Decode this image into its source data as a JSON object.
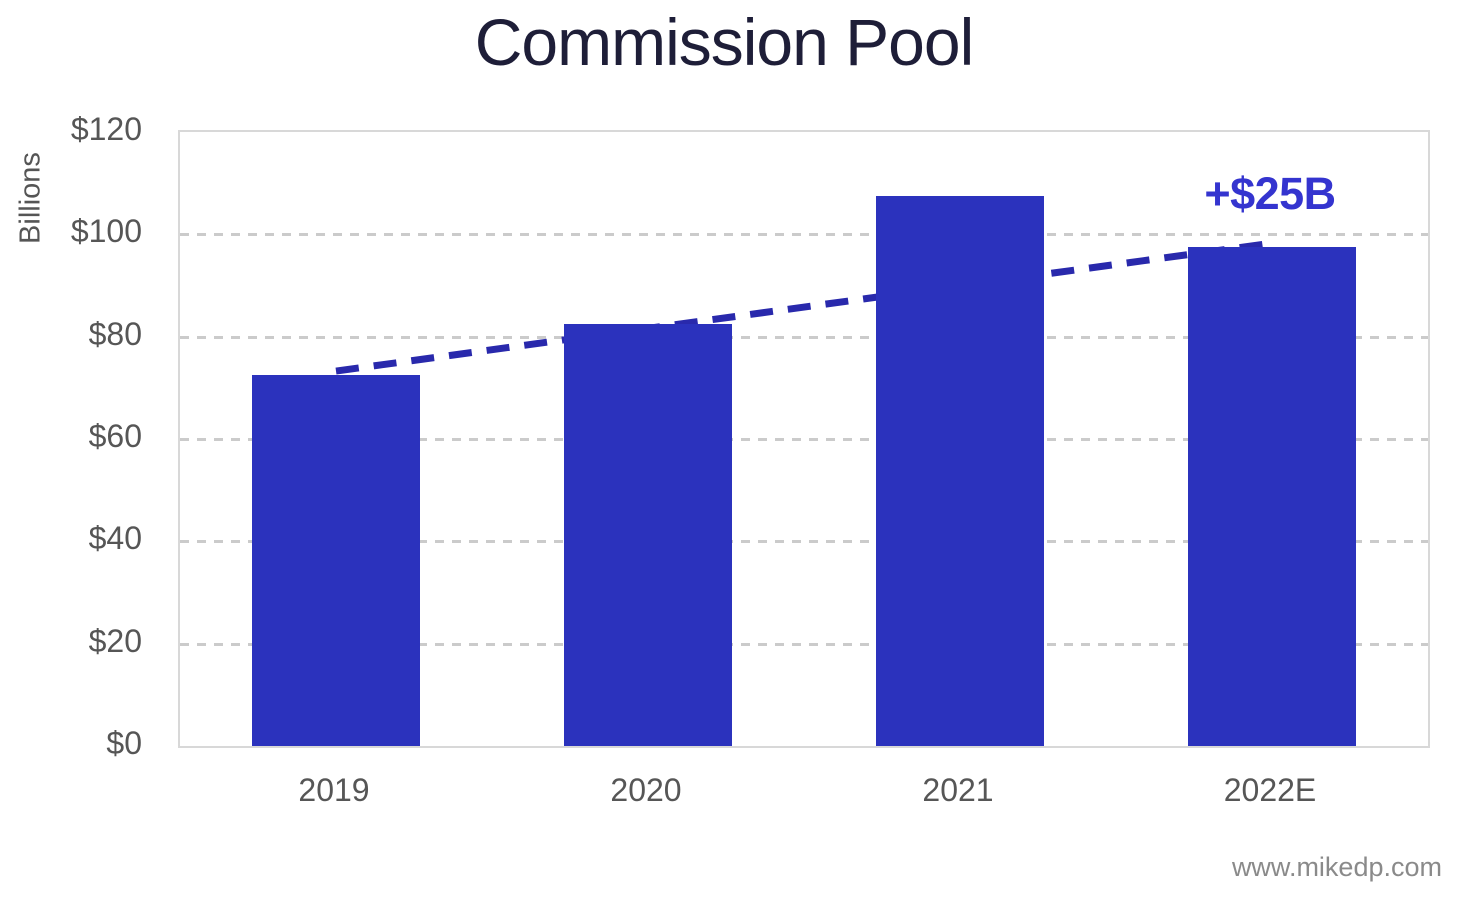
{
  "annotation": {
    "label": "+$25B",
    "color": "#3434cf"
  },
  "watermark": {
    "text": "www.mikedp.com"
  },
  "chart_data": {
    "type": "bar",
    "title": "Commission Pool",
    "categories": [
      "2019",
      "2020",
      "2021",
      "2022E"
    ],
    "values": [
      72.5,
      82.5,
      107.5,
      97.5
    ],
    "xlabel": "",
    "ylabel": "Billions",
    "ylim": [
      0,
      120
    ],
    "yticks": [
      {
        "value": 0,
        "label": "$0"
      },
      {
        "value": 20,
        "label": "$20"
      },
      {
        "value": 40,
        "label": "$40"
      },
      {
        "value": 60,
        "label": "$60"
      },
      {
        "value": 80,
        "label": "$80"
      },
      {
        "value": 100,
        "label": "$100"
      },
      {
        "value": 120,
        "label": "$120"
      }
    ],
    "grid": "horizontal-dashed",
    "legend": "none",
    "bar_color": "#2b32bd",
    "trend_line": {
      "style": "dashed",
      "color": "#2929ac",
      "from_category": "2019",
      "to_category": "2022E",
      "annotation": "+$25B"
    }
  }
}
